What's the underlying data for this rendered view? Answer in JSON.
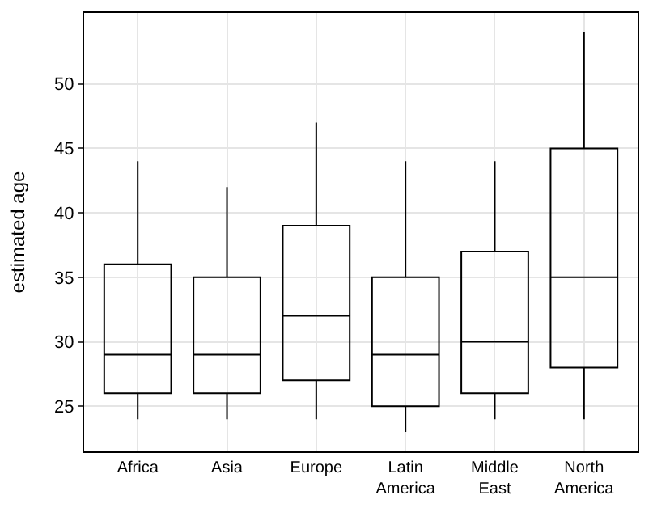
{
  "chart_data": {
    "type": "box",
    "ylabel": "estimated age",
    "categories": [
      "Africa",
      "Asia",
      "Europe",
      "Latin America",
      "Middle East",
      "North America"
    ],
    "boxes": [
      {
        "low": 24,
        "q1": 26,
        "median": 29,
        "q3": 36,
        "high": 44
      },
      {
        "low": 24,
        "q1": 26,
        "median": 29,
        "q3": 35,
        "high": 42
      },
      {
        "low": 24,
        "q1": 27,
        "median": 32,
        "q3": 39,
        "high": 47
      },
      {
        "low": 23,
        "q1": 25,
        "median": 29,
        "q3": 35,
        "high": 44
      },
      {
        "low": 24,
        "q1": 26,
        "median": 30,
        "q3": 37,
        "high": 44
      },
      {
        "low": 24,
        "q1": 28,
        "median": 35,
        "q3": 45,
        "high": 54
      }
    ],
    "color": "#000000",
    "ylim": [
      21.5,
      55.5
    ],
    "yticks": [
      25,
      30,
      35,
      40,
      45,
      50
    ],
    "grid": true,
    "legend": false
  }
}
